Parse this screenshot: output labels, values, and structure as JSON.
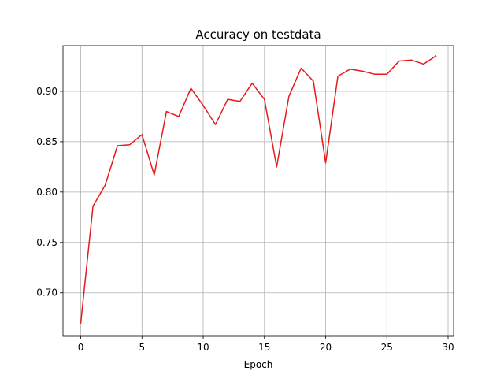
{
  "chart_data": {
    "type": "line",
    "title": "Accuracy on testdata",
    "xlabel": "Epoch",
    "ylabel": "",
    "xlim": [
      -1.45,
      30.45
    ],
    "ylim": [
      0.6568,
      0.9453
    ],
    "xticks": [
      0,
      5,
      10,
      15,
      20,
      25,
      30
    ],
    "xtick_labels": [
      "0",
      "5",
      "10",
      "15",
      "20",
      "25",
      "30"
    ],
    "yticks": [
      0.7,
      0.75,
      0.8,
      0.85,
      0.9
    ],
    "ytick_labels": [
      "0.70",
      "0.75",
      "0.80",
      "0.85",
      "0.90"
    ],
    "grid": true,
    "legend": "none",
    "series": [
      {
        "color": "#e41a1c",
        "x": [
          0,
          1,
          2,
          3,
          4,
          5,
          6,
          7,
          8,
          9,
          10,
          11,
          12,
          13,
          14,
          15,
          16,
          17,
          18,
          19,
          20,
          21,
          22,
          23,
          24,
          25,
          26,
          27,
          28,
          29
        ],
        "y": [
          0.67,
          0.786,
          0.807,
          0.846,
          0.847,
          0.857,
          0.817,
          0.88,
          0.875,
          0.903,
          0.886,
          0.867,
          0.892,
          0.89,
          0.908,
          0.892,
          0.825,
          0.895,
          0.923,
          0.91,
          0.829,
          0.915,
          0.922,
          0.92,
          0.917,
          0.917,
          0.93,
          0.931,
          0.927,
          0.935
        ]
      }
    ]
  }
}
